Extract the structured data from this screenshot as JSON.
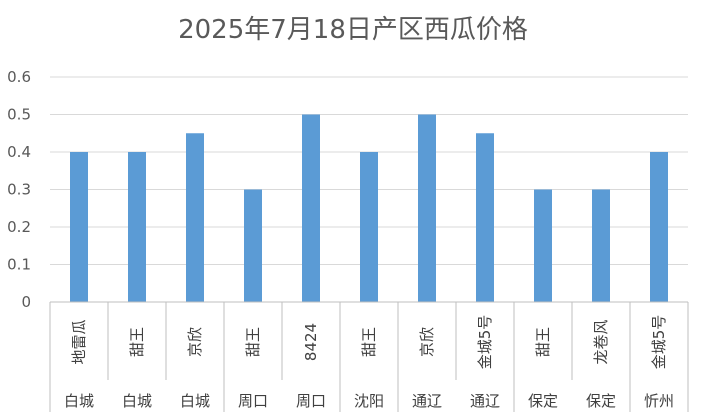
{
  "chart_data": {
    "type": "bar",
    "title": "2025年7月18日产区西瓜价格",
    "categories": [
      "地雷瓜",
      "甜王",
      "京欣",
      "甜王",
      "8424",
      "甜王",
      "京欣",
      "金城5号",
      "甜王",
      "龙卷风",
      "金城5号"
    ],
    "regions": [
      "白城",
      "白城",
      "白城",
      "周口",
      "周口",
      "沈阳",
      "通辽",
      "通辽",
      "保定",
      "保定",
      "忻州"
    ],
    "region_groups": [
      {
        "label": "白城",
        "start": 0,
        "end": 2
      },
      {
        "label": "周口",
        "start": 3,
        "end": 4
      },
      {
        "label": "沈阳",
        "start": 5,
        "end": 5
      },
      {
        "label": "通辽",
        "start": 6,
        "end": 7
      },
      {
        "label": "保定",
        "start": 8,
        "end": 9
      },
      {
        "label": "忻州",
        "start": 10,
        "end": 10
      }
    ],
    "values": [
      0.4,
      0.4,
      0.45,
      0.3,
      0.5,
      0.4,
      0.5,
      0.45,
      0.3,
      0.3,
      0.4
    ],
    "xlabel": "",
    "ylabel": "",
    "ylim": [
      0,
      0.6
    ],
    "yticks": [
      "0",
      "0.1",
      "0.2",
      "0.3",
      "0.4",
      "0.5",
      "0.6"
    ],
    "grid": true,
    "legend": "none",
    "bar_color": "#5B9BD5",
    "grid_color": "#D9D9D9",
    "axis_color": "#BFBFBF"
  }
}
